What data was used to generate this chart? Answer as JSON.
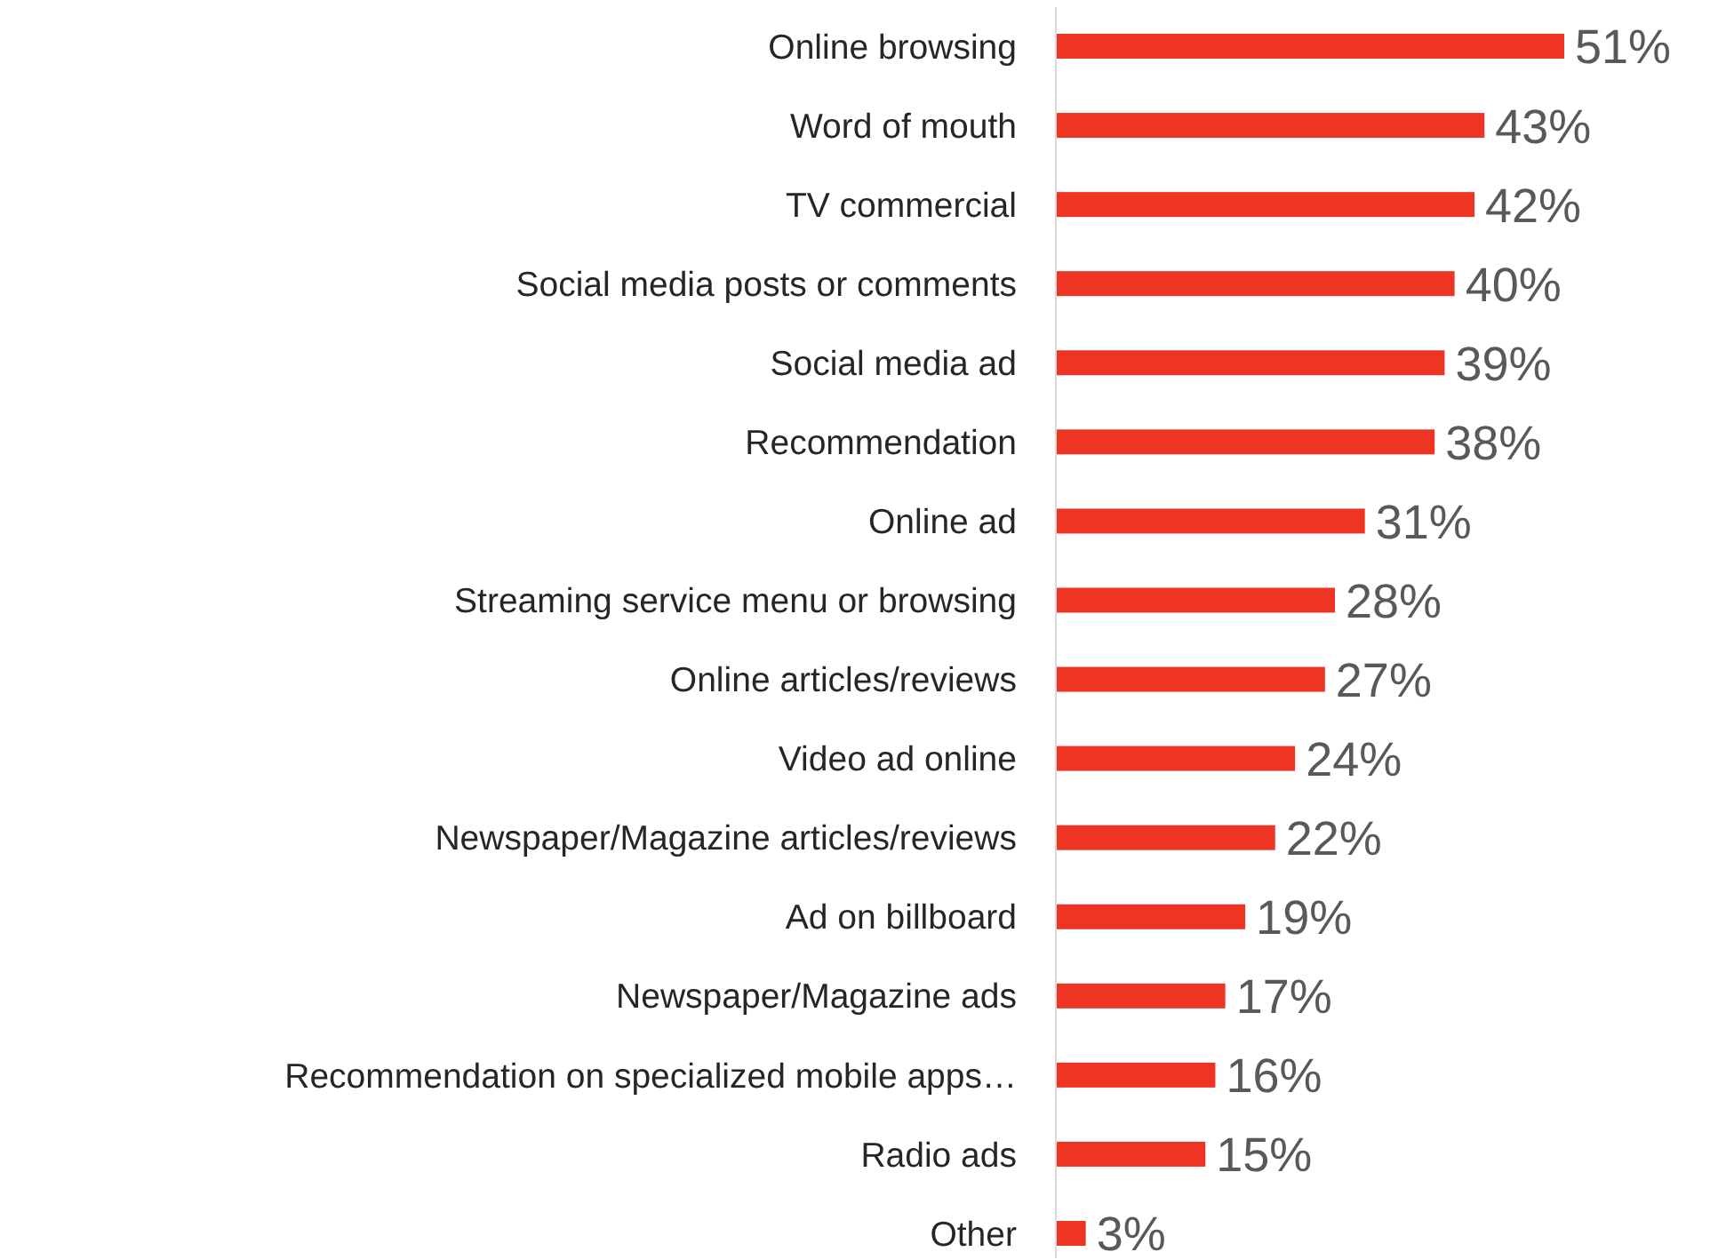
{
  "chart_data": {
    "type": "bar",
    "orientation": "horizontal",
    "categories": [
      "Online browsing",
      "Word of mouth",
      "TV commercial",
      "Social media posts or comments",
      "Social media ad",
      "Recommendation",
      "Online ad",
      "Streaming service menu or browsing",
      "Online articles/reviews",
      "Video ad online",
      "Newspaper/Magazine articles/reviews",
      "Ad on billboard",
      "Newspaper/Magazine ads",
      "Recommendation on specialized mobile apps…",
      "Radio ads",
      "Other"
    ],
    "values": [
      51,
      43,
      42,
      40,
      39,
      38,
      31,
      28,
      27,
      24,
      22,
      19,
      17,
      16,
      15,
      3
    ],
    "value_labels": [
      "51%",
      "43%",
      "42%",
      "40%",
      "39%",
      "38%",
      "31%",
      "28%",
      "27%",
      "24%",
      "22%",
      "19%",
      "17%",
      "16%",
      "15%",
      "3%"
    ],
    "color": "#ee3524"
  }
}
